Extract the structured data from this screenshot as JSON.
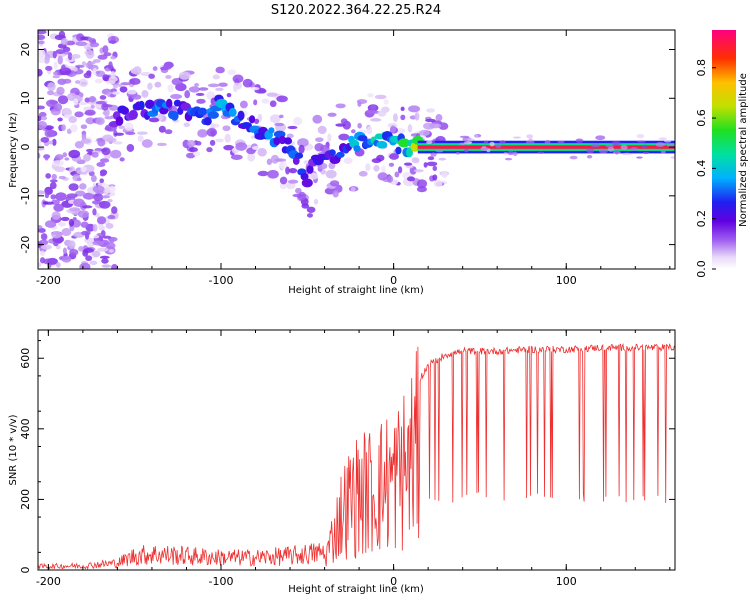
{
  "title": "S120.2022.364.22.25.R24",
  "chart_data": [
    {
      "type": "heatmap",
      "xlabel": "Height of straight line (km)",
      "ylabel": "Frequency (Hz)",
      "xlim": [
        -206,
        163
      ],
      "ylim": [
        -25,
        24
      ],
      "xticks": [
        -200,
        -100,
        0,
        100
      ],
      "yticks": [
        -20,
        -10,
        0,
        10,
        20
      ],
      "colorbar": {
        "label": "Normalized spectral amplitude",
        "range": [
          0.0,
          0.95
        ],
        "ticks": [
          "0.0",
          "0.2",
          "0.4",
          "0.6",
          "0.8"
        ],
        "tick_values": [
          0.0,
          0.2,
          0.4,
          0.6,
          0.8
        ]
      },
      "ridge": {
        "x": [
          -160,
          -150,
          -140,
          -130,
          -120,
          -110,
          -100,
          -90,
          -80,
          -70,
          -60,
          -55,
          -50,
          -45,
          -40,
          -35,
          -30,
          -25,
          -20,
          -15,
          -10,
          -5,
          0,
          5,
          10,
          20,
          40,
          60,
          80,
          100,
          120,
          140,
          160
        ],
        "y": [
          6,
          7,
          8,
          8,
          7,
          6,
          9,
          6,
          4,
          2,
          0,
          -3,
          -6,
          -3,
          -1,
          -2,
          0,
          0,
          1,
          2,
          2,
          1,
          1,
          0.5,
          0.3,
          0,
          0,
          0,
          0,
          0,
          0,
          0,
          0
        ],
        "amplitude": [
          0.2,
          0.25,
          0.3,
          0.3,
          0.28,
          0.3,
          0.35,
          0.3,
          0.3,
          0.32,
          0.3,
          0.3,
          0.2,
          0.25,
          0.25,
          0.25,
          0.3,
          0.35,
          0.4,
          0.4,
          0.4,
          0.4,
          0.4,
          0.5,
          0.6,
          0.9,
          0.9,
          0.9,
          0.9,
          0.9,
          0.9,
          0.9,
          0.9
        ]
      }
    },
    {
      "type": "line",
      "xlabel": "Height of straight line (km)",
      "ylabel": "SNR (10 * v/v)",
      "xlim": [
        -206,
        163
      ],
      "ylim": [
        0,
        680
      ],
      "xticks": [
        -200,
        -100,
        0,
        100
      ],
      "yticks": [
        0,
        200,
        400,
        600
      ],
      "color": "#ee3030",
      "series": [
        {
          "x": [
            -206,
            -180,
            -160,
            -150,
            -140,
            -120,
            -100,
            -80,
            -60,
            -50,
            -40,
            -35,
            -30,
            -25,
            -20,
            -15,
            -10,
            -5,
            0,
            5,
            10,
            15,
            20,
            30,
            40,
            60,
            80,
            100,
            120,
            140,
            160
          ],
          "y": [
            10,
            12,
            20,
            40,
            45,
            40,
            35,
            35,
            40,
            45,
            50,
            150,
            250,
            300,
            330,
            340,
            350,
            380,
            390,
            430,
            480,
            540,
            580,
            610,
            620,
            620,
            625,
            625,
            630,
            630,
            630
          ],
          "dropout_floor": 190,
          "dropout_start": 15
        }
      ]
    }
  ]
}
